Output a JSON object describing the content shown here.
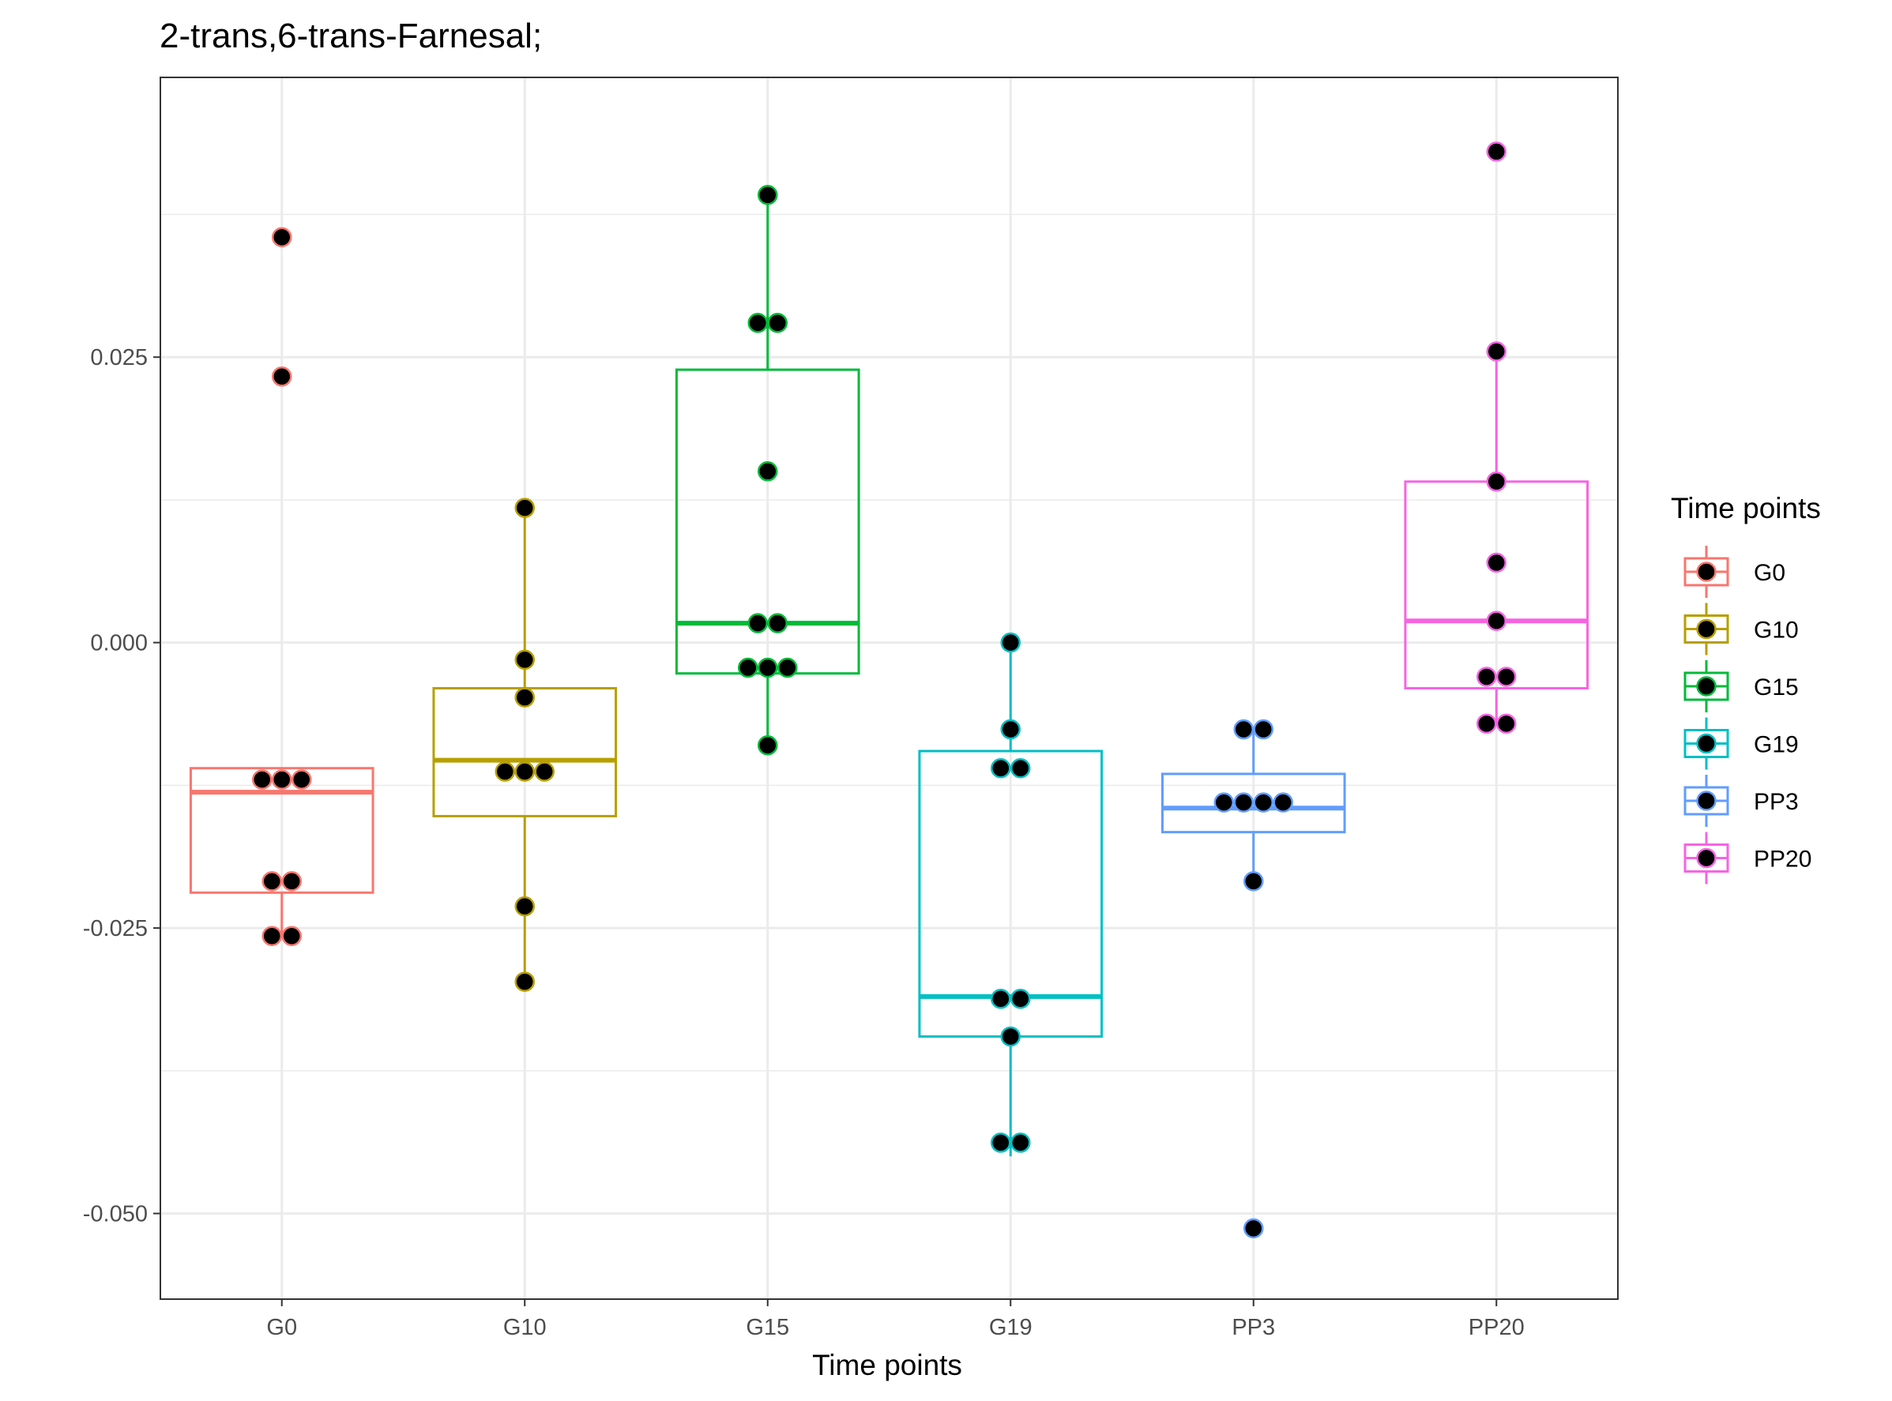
{
  "chart_data": {
    "type": "box",
    "title": "2-trans,6-trans-Farnesal;",
    "xlabel": "Time points",
    "ylabel": "",
    "ylim": [
      -0.0575,
      0.0495
    ],
    "yticks": [
      -0.05,
      -0.025,
      0.0,
      0.025
    ],
    "ytick_labels": [
      "-0.050",
      "-0.025",
      "0.000",
      "0.025"
    ],
    "grid": true,
    "legend": {
      "title": "Time points",
      "position": "right"
    },
    "categories": [
      "G0",
      "G10",
      "G15",
      "G19",
      "PP3",
      "PP20"
    ],
    "series": [
      {
        "name": "G0",
        "color": "#F8766D",
        "box": {
          "q1": -0.0219,
          "median": -0.0131,
          "q3": -0.011,
          "whisker_low": -0.0258,
          "whisker_high": -0.011
        },
        "points": [
          0.0355,
          0.0233,
          -0.012,
          -0.012,
          -0.012,
          -0.0209,
          -0.0209,
          -0.0257,
          -0.0257
        ]
      },
      {
        "name": "G10",
        "color": "#B79F00",
        "box": {
          "q1": -0.0152,
          "median": -0.0103,
          "q3": -0.004,
          "whisker_low": -0.0297,
          "whisker_high": 0.0118
        },
        "points": [
          0.0118,
          -0.0015,
          -0.0048,
          -0.0113,
          -0.0113,
          -0.0113,
          -0.0231,
          -0.0297
        ]
      },
      {
        "name": "G15",
        "color": "#00BA38",
        "box": {
          "q1": -0.0027,
          "median": 0.0017,
          "q3": 0.0239,
          "whisker_low": -0.009,
          "whisker_high": 0.0392
        },
        "points": [
          0.0392,
          0.028,
          0.028,
          0.015,
          0.0017,
          0.0017,
          -0.0022,
          -0.0022,
          -0.0022,
          -0.009
        ]
      },
      {
        "name": "G19",
        "color": "#00BFC4",
        "box": {
          "q1": -0.0345,
          "median": -0.031,
          "q3": -0.0095,
          "whisker_low": -0.045,
          "whisker_high": 0.0
        },
        "points": [
          0.0,
          -0.0076,
          -0.011,
          -0.011,
          -0.0312,
          -0.0312,
          -0.0345,
          -0.0438,
          -0.0438
        ]
      },
      {
        "name": "PP3",
        "color": "#619CFF",
        "box": {
          "q1": -0.0166,
          "median": -0.0145,
          "q3": -0.0115,
          "whisker_low": -0.0209,
          "whisker_high": -0.0076
        },
        "points": [
          -0.0076,
          -0.0076,
          -0.014,
          -0.014,
          -0.014,
          -0.014,
          -0.0209,
          -0.0513
        ]
      },
      {
        "name": "PP20",
        "color": "#F564E3",
        "box": {
          "q1": -0.004,
          "median": 0.0019,
          "q3": 0.0141,
          "whisker_low": -0.0071,
          "whisker_high": 0.0255
        },
        "points": [
          0.043,
          0.0255,
          0.0141,
          0.007,
          0.0019,
          -0.003,
          -0.003,
          -0.0071,
          -0.0071
        ]
      }
    ]
  }
}
